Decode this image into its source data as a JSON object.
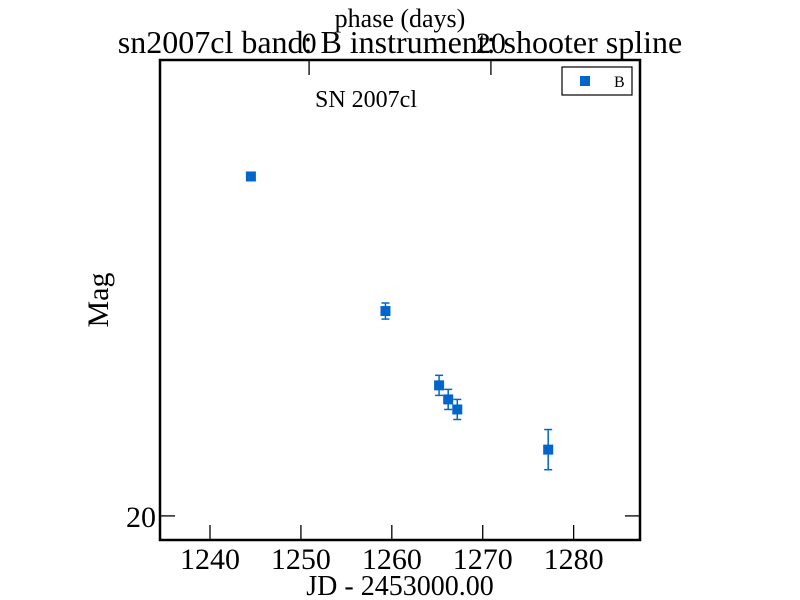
{
  "chart_data": {
    "type": "scatter",
    "title": "sn2007cl band: B instrument: shooter spline",
    "top_axis_label": "phase (days)",
    "top_tick_labels": [
      "0",
      "20"
    ],
    "top_ticks": [
      0,
      20
    ],
    "phase_zero_jd": 1250.9,
    "xlabel": "JD - 2453000.00",
    "ylabel": "Mag",
    "x_tick_labels": [
      "1240",
      "1250",
      "1260",
      "1270",
      "1280"
    ],
    "x_ticks": [
      1240,
      1250,
      1260,
      1270,
      1280
    ],
    "y_tick_labels": [
      "20"
    ],
    "y_ticks": [
      20
    ],
    "xlim": [
      1234.5,
      1287.3
    ],
    "ylim": [
      20.12,
      17.73
    ],
    "y_inverted": true,
    "annotation": "SN 2007cl",
    "legend_position": "top-right",
    "color": "#0066cc",
    "series": [
      {
        "name": "B",
        "marker": "square",
        "points": [
          {
            "x": 1244.5,
            "y": 18.31,
            "err": 0.0
          },
          {
            "x": 1259.3,
            "y": 18.98,
            "err": 0.04
          },
          {
            "x": 1265.2,
            "y": 19.35,
            "err": 0.05
          },
          {
            "x": 1266.2,
            "y": 19.42,
            "err": 0.05
          },
          {
            "x": 1267.2,
            "y": 19.47,
            "err": 0.05
          },
          {
            "x": 1277.2,
            "y": 19.67,
            "err": 0.1
          }
        ]
      }
    ]
  }
}
